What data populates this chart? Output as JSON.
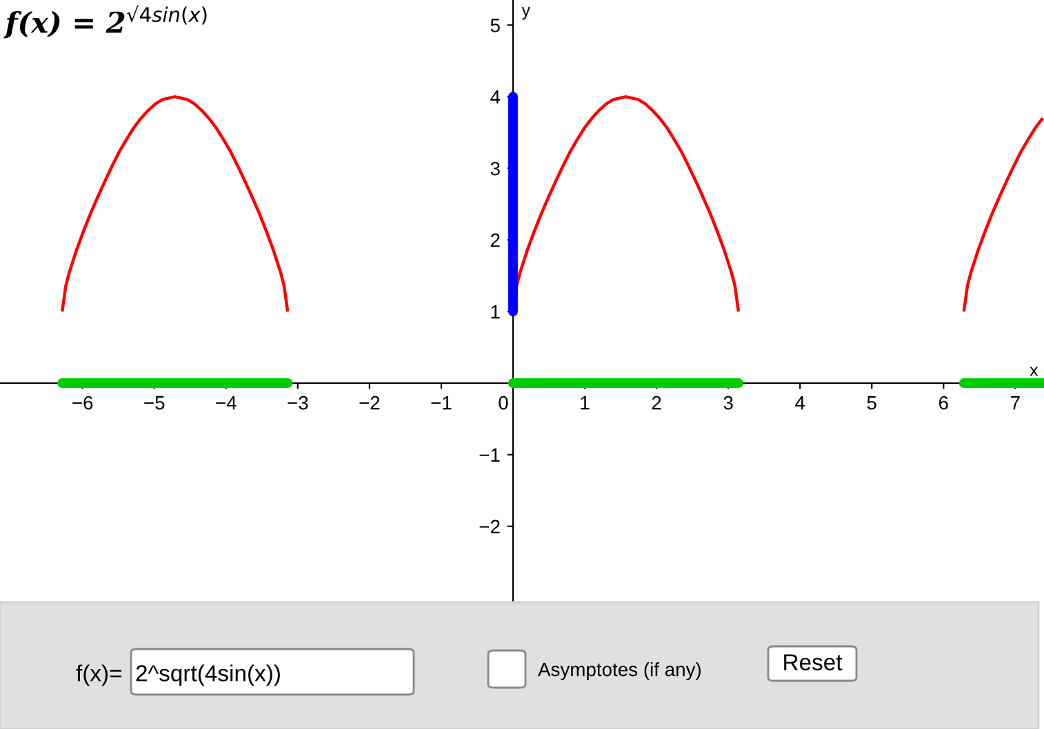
{
  "chart_data": {
    "type": "line",
    "title": "f(x) = 2$^{√4sin(x)}$",
    "xlabel": "x",
    "ylabel": "y",
    "xlim": [
      -7.15,
      7.4
    ],
    "ylim": [
      -3.06,
      5.35
    ],
    "xticks": [
      -6,
      -5,
      -4,
      -3,
      -2,
      -1,
      0,
      1,
      2,
      3,
      4,
      5,
      6,
      7
    ],
    "yticks": [
      -2,
      -1,
      1,
      2,
      3,
      4,
      5
    ],
    "series": [
      {
        "color": "#ff0000",
        "x": [
          -6.283,
          -6.233,
          -6.183,
          -6.083,
          -5.983,
          -5.883,
          -5.783,
          -5.683,
          -5.583,
          -5.483,
          -5.383,
          -5.283,
          -5.183,
          -5.083,
          -4.983,
          -4.883,
          -4.712,
          -4.541,
          -4.441,
          -4.341,
          -4.241,
          -4.141,
          -4.041,
          -3.941,
          -3.841,
          -3.741,
          -3.641,
          -3.541,
          -3.441,
          -3.341,
          -3.241,
          -3.191,
          -3.141
        ],
        "values": [
          1,
          1.36,
          1.55,
          1.86,
          2.13,
          2.38,
          2.61,
          2.83,
          3.04,
          3.24,
          3.41,
          3.57,
          3.7,
          3.81,
          3.9,
          3.96,
          4,
          3.96,
          3.9,
          3.81,
          3.7,
          3.57,
          3.41,
          3.24,
          3.04,
          2.83,
          2.61,
          2.38,
          2.13,
          1.86,
          1.55,
          1.36,
          1
        ]
      },
      {
        "color": "#ff0000",
        "x": [
          0,
          0.05,
          0.1,
          0.2,
          0.3,
          0.4,
          0.5,
          0.6,
          0.7,
          0.8,
          0.9,
          1.0,
          1.1,
          1.2,
          1.3,
          1.4,
          1.571,
          1.742,
          1.842,
          1.942,
          2.042,
          2.142,
          2.242,
          2.342,
          2.442,
          2.542,
          2.642,
          2.742,
          2.842,
          2.942,
          3.042,
          3.092,
          3.142
        ],
        "values": [
          1,
          1.36,
          1.55,
          1.86,
          2.13,
          2.38,
          2.61,
          2.83,
          3.04,
          3.24,
          3.41,
          3.57,
          3.7,
          3.81,
          3.9,
          3.96,
          4,
          3.96,
          3.9,
          3.81,
          3.7,
          3.57,
          3.41,
          3.24,
          3.04,
          2.83,
          2.61,
          2.38,
          2.13,
          1.86,
          1.55,
          1.36,
          1
        ]
      },
      {
        "color": "#ff0000",
        "x": [
          6.283,
          6.333,
          6.383,
          6.483,
          6.583,
          6.683,
          6.783,
          6.883,
          6.983,
          7.083,
          7.183,
          7.283,
          7.383
        ],
        "values": [
          1,
          1.36,
          1.55,
          1.86,
          2.13,
          2.38,
          2.61,
          2.83,
          3.04,
          3.24,
          3.41,
          3.57,
          3.7
        ]
      },
      {
        "color": "#00cc00",
        "x": [
          -6.283,
          -3.141
        ],
        "values": [
          0,
          0
        ]
      },
      {
        "color": "#00cc00",
        "x": [
          0,
          3.142
        ],
        "values": [
          0,
          0
        ]
      },
      {
        "color": "#00cc00",
        "x": [
          6.283,
          7.4
        ],
        "values": [
          0,
          0
        ]
      },
      {
        "color": "#0000ff",
        "x": [
          0,
          0
        ],
        "values": [
          1,
          4
        ]
      }
    ],
    "annotations": [
      "f(x)=",
      "2^sqrt(4sin(x))",
      "Asymptotes (if any)",
      "Reset"
    ]
  }
}
